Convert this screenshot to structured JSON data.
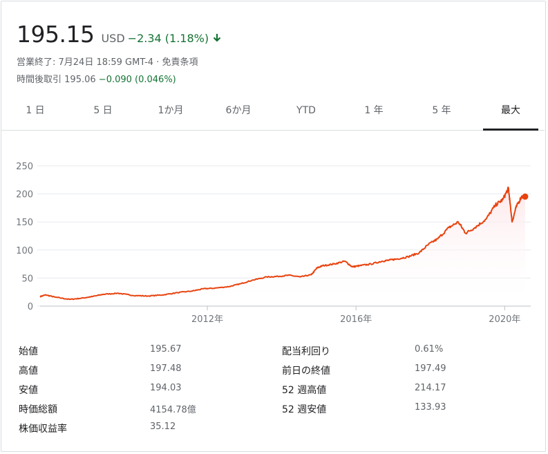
{
  "quote": {
    "price": "195.15",
    "currency": "USD",
    "change": "−2.34 (1.18%)",
    "direction_icon": "arrow-down-icon",
    "status": "営業終了: 7月24日 18:59 GMT-4 · 免責条項",
    "after_hours_label": "時間後取引",
    "after_hours_price": "195.06",
    "after_hours_change": "−0.090 (0.046%)"
  },
  "tabs": [
    {
      "label": "1 日",
      "active": false
    },
    {
      "label": "5 日",
      "active": false
    },
    {
      "label": "1か月",
      "active": false
    },
    {
      "label": "6か月",
      "active": false
    },
    {
      "label": "YTD",
      "active": false
    },
    {
      "label": "1 年",
      "active": false
    },
    {
      "label": "5 年",
      "active": false
    },
    {
      "label": "最大",
      "active": true
    }
  ],
  "colors": {
    "line": "#e8430f",
    "down": "#137333",
    "fill": "#fde7ea",
    "grid": "#e8eaed"
  },
  "chart_data": {
    "type": "area",
    "yticks": [
      0,
      50,
      100,
      150,
      200,
      250
    ],
    "ylim": [
      0,
      250
    ],
    "xticks": [
      {
        "label": "2012年",
        "x": 2012.0
      },
      {
        "label": "2016年",
        "x": 2016.0
      },
      {
        "label": "2020年",
        "x": 2020.0
      }
    ],
    "xlim": [
      2007.5,
      2020.7
    ],
    "grid": true,
    "series": [
      {
        "x": [
          2007.5,
          2007.65,
          2007.9,
          2008.3,
          2008.6,
          2008.9,
          2009.2,
          2009.6,
          2010.0,
          2010.4,
          2010.8,
          2011.2,
          2011.6,
          2011.9,
          2012.2,
          2012.6,
          2012.9,
          2013.2,
          2013.6,
          2013.9,
          2014.2,
          2014.5,
          2014.8,
          2014.95,
          2015.1,
          2015.4,
          2015.7,
          2015.9,
          2016.1,
          2016.4,
          2016.7,
          2016.9,
          2017.1,
          2017.4,
          2017.7,
          2017.95,
          2018.2,
          2018.5,
          2018.75,
          2018.95,
          2019.2,
          2019.5,
          2019.75,
          2019.95,
          2020.1,
          2020.15,
          2020.2,
          2020.3,
          2020.45,
          2020.55
        ],
        "y": [
          17,
          20,
          16,
          12,
          14,
          17,
          21,
          23,
          19,
          18,
          20,
          24,
          27,
          31,
          32,
          35,
          40,
          46,
          52,
          53,
          55,
          52,
          56,
          68,
          72,
          75,
          80,
          70,
          72,
          75,
          80,
          82,
          84,
          88,
          95,
          110,
          120,
          140,
          150,
          130,
          140,
          155,
          180,
          190,
          210,
          180,
          150,
          175,
          195,
          195.15
        ]
      }
    ],
    "last_value": 195.15
  },
  "stats": {
    "rows": [
      {
        "left_label": "始値",
        "left_value": "195.67",
        "right_label": "配当利回り",
        "right_value": "0.61%"
      },
      {
        "left_label": "高値",
        "left_value": "197.48",
        "right_label": "前日の終値",
        "right_value": "197.49"
      },
      {
        "left_label": "安値",
        "left_value": "194.03",
        "right_label": "52 週高値",
        "right_value": "214.17"
      },
      {
        "left_label": "時価総額",
        "left_value": "4154.78億",
        "right_label": "52 週安値",
        "right_value": "133.93"
      },
      {
        "left_label": "株価収益率",
        "left_value": "35.12",
        "right_label": "",
        "right_value": ""
      }
    ]
  }
}
